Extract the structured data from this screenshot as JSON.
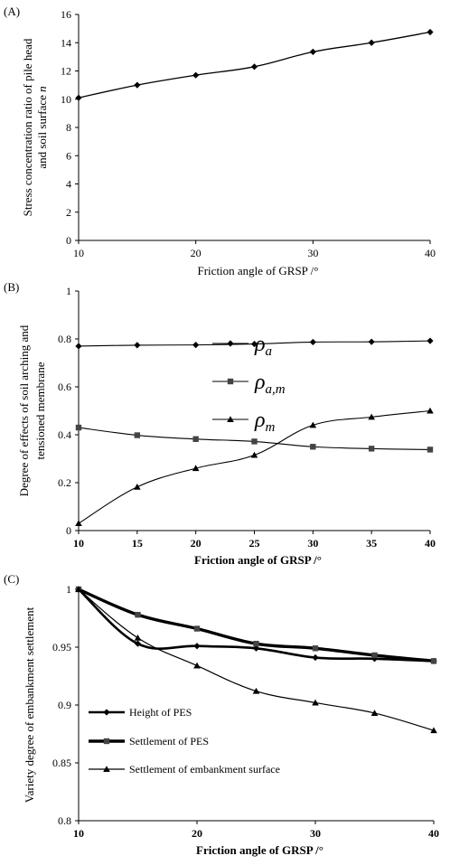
{
  "chart_data": [
    {
      "type": "line",
      "panel_label": "(A)",
      "x": [
        10,
        15,
        20,
        25,
        30,
        35,
        40
      ],
      "xlim": [
        10,
        40
      ],
      "ylim": [
        0,
        16
      ],
      "xticks": [
        "10",
        "20",
        "30",
        "40"
      ],
      "xtick_values": [
        10,
        20,
        30,
        40
      ],
      "yticks": [
        "0",
        "2",
        "4",
        "6",
        "8",
        "10",
        "12",
        "14",
        "16"
      ],
      "ytick_values": [
        0,
        2,
        4,
        6,
        8,
        10,
        12,
        14,
        16
      ],
      "xlabel": "Friction angle of GRSP  /°",
      "ylabel_line1": "Stress concentration ratio of pile head",
      "ylabel_line2_prefix": "and soil surface ",
      "ylabel_line2_var": "n",
      "series": [
        {
          "name": "",
          "marker": "diamond",
          "values": [
            10.1,
            11.0,
            11.7,
            12.3,
            13.35,
            14.0,
            14.75
          ]
        }
      ],
      "grid": false
    },
    {
      "type": "line",
      "panel_label": "(B)",
      "x": [
        10,
        15,
        20,
        25,
        30,
        35,
        40
      ],
      "xlim": [
        10,
        40
      ],
      "ylim": [
        0,
        1
      ],
      "xticks": [
        "10",
        "15",
        "20",
        "25",
        "30",
        "35",
        "40"
      ],
      "xtick_values": [
        10,
        15,
        20,
        25,
        30,
        35,
        40
      ],
      "yticks": [
        "0",
        "0.2",
        "0.4",
        "0.6",
        "0.8",
        "1"
      ],
      "ytick_values": [
        0,
        0.2,
        0.4,
        0.6,
        0.8,
        1
      ],
      "xlabel": "Friction angle of GRSP /°",
      "ylabel_line1": "Degree of effects of soil arching and",
      "ylabel_line2": "tensioned membrane",
      "series": [
        {
          "name": "ρ",
          "sub": "a",
          "marker": "diamond",
          "values": [
            0.77,
            0.774,
            0.775,
            0.779,
            0.787,
            0.788,
            0.792
          ]
        },
        {
          "name": "ρ",
          "sub": "a,m",
          "marker": "square",
          "values": [
            0.43,
            0.398,
            0.382,
            0.372,
            0.35,
            0.342,
            0.338
          ]
        },
        {
          "name": "ρ",
          "sub": "m",
          "marker": "triangle",
          "values": [
            0.03,
            0.182,
            0.26,
            0.315,
            0.44,
            0.474,
            0.5
          ]
        }
      ],
      "legend_position": "center",
      "grid": false
    },
    {
      "type": "line",
      "panel_label": "(C)",
      "x": [
        10,
        15,
        20,
        25,
        30,
        35,
        40
      ],
      "xlim": [
        10,
        40
      ],
      "ylim": [
        0.8,
        1
      ],
      "xticks": [
        "10",
        "20",
        "30",
        "40"
      ],
      "xtick_values": [
        10,
        20,
        30,
        40
      ],
      "yticks": [
        "0.8",
        "0.85",
        "0.9",
        "0.95",
        "1"
      ],
      "ytick_values": [
        0.8,
        0.85,
        0.9,
        0.95,
        1
      ],
      "xlabel": "Friction angle of GRSP  /°",
      "ylabel": "Variety degree of embankment settlement",
      "series": [
        {
          "name": "Height of PES",
          "marker": "diamond",
          "values": [
            1.0,
            0.953,
            0.951,
            0.949,
            0.941,
            0.94,
            0.938
          ]
        },
        {
          "name": "Settlement of PES",
          "marker": "square",
          "values": [
            1.0,
            0.978,
            0.966,
            0.953,
            0.949,
            0.943,
            0.938
          ]
        },
        {
          "name": "Settlement of embankment surface",
          "marker": "triangle",
          "values": [
            1.0,
            0.958,
            0.934,
            0.912,
            0.902,
            0.893,
            0.878
          ]
        }
      ],
      "legend_position": "lower-left",
      "grid": false
    }
  ]
}
